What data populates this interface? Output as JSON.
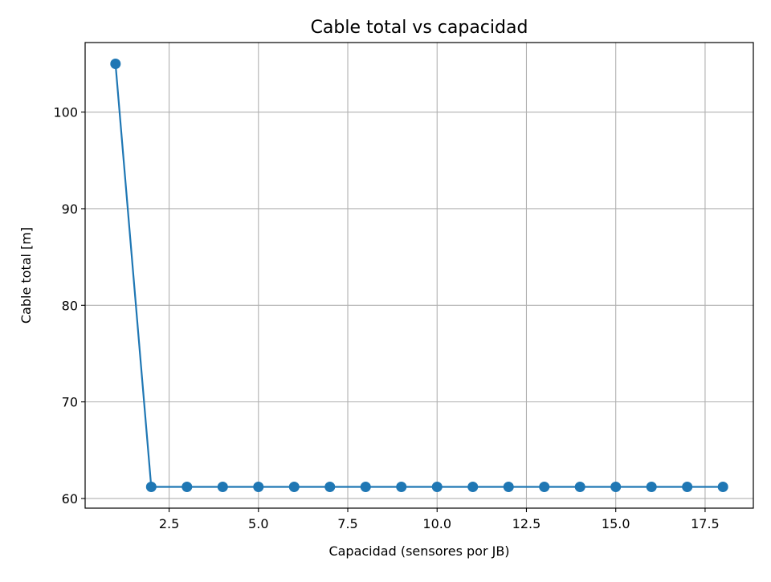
{
  "chart_data": {
    "type": "line",
    "title": "Cable total vs capacidad",
    "xlabel": "Capacidad (sensores por JB)",
    "ylabel": "Cable total [m]",
    "xlim": [
      0.15,
      18.85
    ],
    "ylim": [
      59.0,
      107.2
    ],
    "xticks": [
      2.5,
      5.0,
      7.5,
      10.0,
      12.5,
      15.0,
      17.5
    ],
    "xtick_labels": [
      "2.5",
      "5.0",
      "7.5",
      "10.0",
      "12.5",
      "15.0",
      "17.5"
    ],
    "yticks": [
      60,
      70,
      80,
      90,
      100
    ],
    "ytick_labels": [
      "60",
      "70",
      "80",
      "90",
      "100"
    ],
    "grid": true,
    "color": "#1f77b4",
    "marker": "circle",
    "x": [
      1,
      2,
      3,
      4,
      5,
      6,
      7,
      8,
      9,
      10,
      11,
      12,
      13,
      14,
      15,
      16,
      17,
      18
    ],
    "y": [
      105.0,
      61.2,
      61.2,
      61.2,
      61.2,
      61.2,
      61.2,
      61.2,
      61.2,
      61.2,
      61.2,
      61.2,
      61.2,
      61.2,
      61.2,
      61.2,
      61.2,
      61.2
    ]
  }
}
